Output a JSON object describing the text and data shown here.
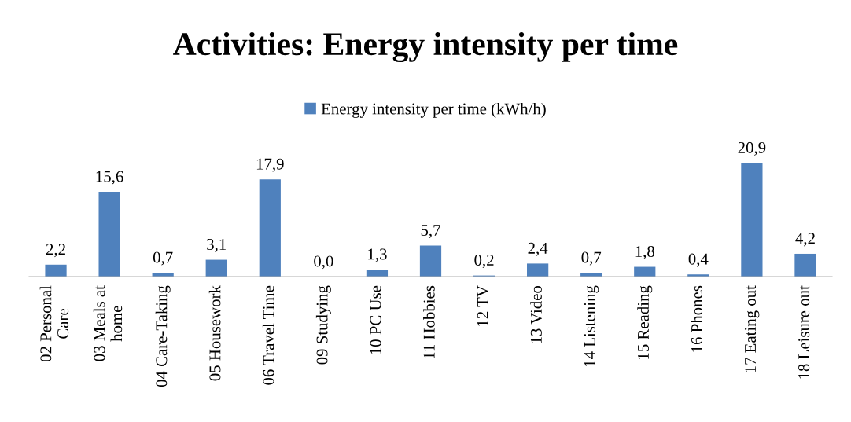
{
  "chart_data": {
    "type": "bar",
    "title": "Activities: Energy intensity per time",
    "categories": [
      "02 Personal\nCare",
      "03 Meals at\nhome",
      "04 Care-Taking",
      "05 Housework",
      "06 Travel Time",
      "09 Studying",
      "10 PC Use",
      "11 Hobbies",
      "12 TV",
      "13 Video",
      "14 Listening",
      "15 Reading",
      "16 Phones",
      "17 Eating out",
      "18 Leisure out"
    ],
    "series": [
      {
        "name": "Energy intensity per time (kWh/h)",
        "color": "#4f81bd",
        "values": [
          2.2,
          15.6,
          0.7,
          3.1,
          17.9,
          0.0,
          1.3,
          5.7,
          0.2,
          2.4,
          0.7,
          1.8,
          0.4,
          20.9,
          4.2
        ],
        "value_labels": [
          "2,2",
          "15,6",
          "0,7",
          "3,1",
          "17,9",
          "0,0",
          "1,3",
          "5,7",
          "0,2",
          "2,4",
          "0,7",
          "1,8",
          "0,4",
          "20,9",
          "4,2"
        ]
      }
    ],
    "legend": "top",
    "grid": false
  }
}
